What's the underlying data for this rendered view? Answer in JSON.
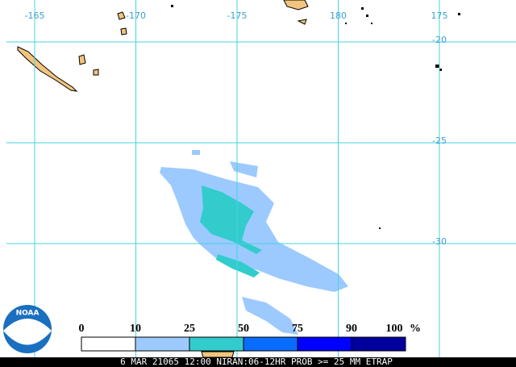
{
  "map": {
    "longitude_labels": [
      "-165",
      "-170",
      "-175",
      "180",
      "175"
    ],
    "latitude_labels": [
      "-20",
      "-25",
      "-30"
    ],
    "logo": "NOAA",
    "legend": {
      "ticks": [
        0,
        10,
        25,
        50,
        75,
        90,
        100
      ],
      "unit": "%",
      "colors": [
        "#ffffff",
        "#9ccaff",
        "#32cccc",
        "#0a6cff",
        "#0000ff",
        "#00009c"
      ]
    },
    "caption": "6 MAR 21065 12:00 NIRAN:06-12HR PROB >= 25 MM ETRAP"
  }
}
